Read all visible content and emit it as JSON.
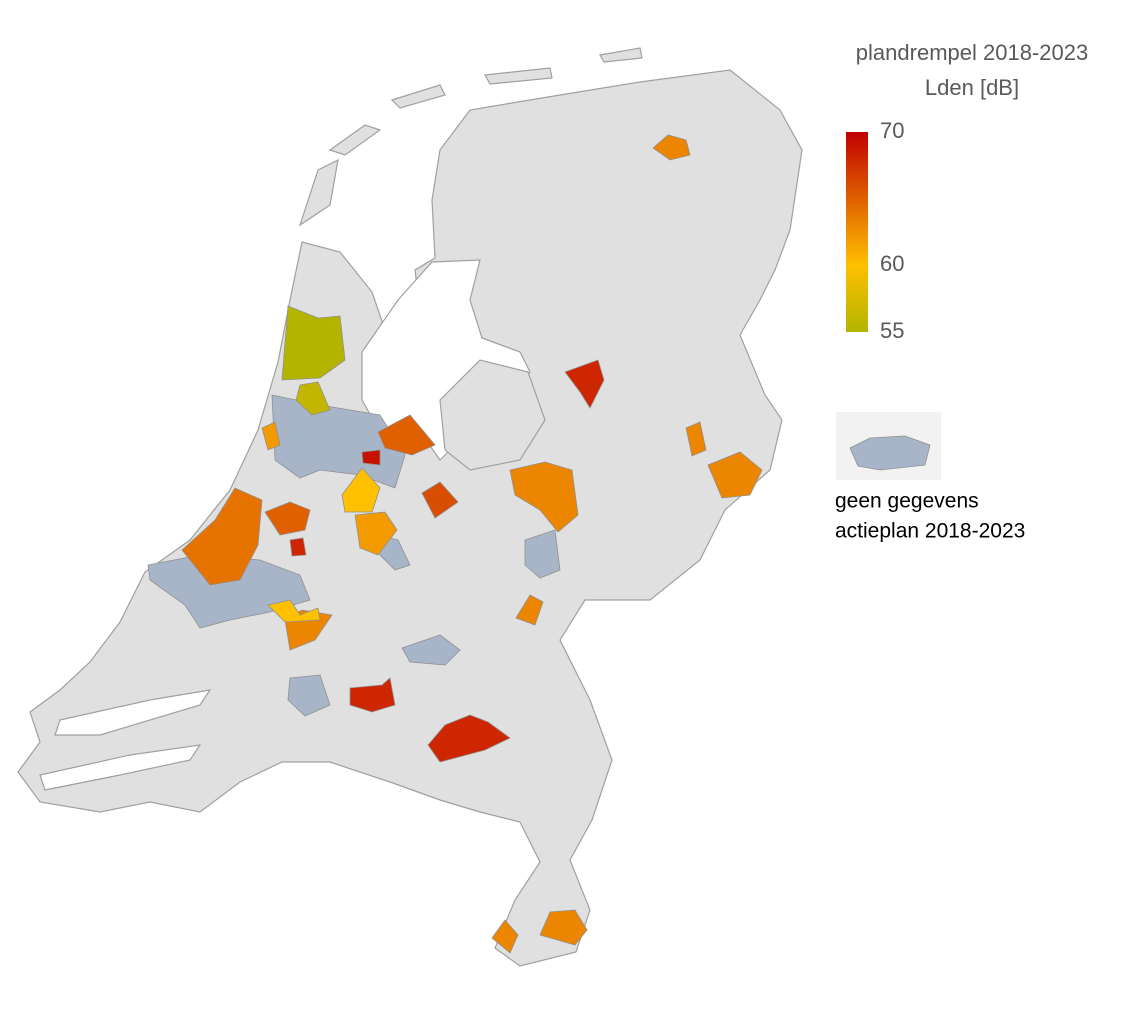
{
  "legend": {
    "title": "plandrempel 2018-2023",
    "subtitle": "Lden [dB]",
    "range": [
      55,
      70
    ],
    "ticks": [
      70,
      60,
      55
    ],
    "colorscale": [
      {
        "value": 55,
        "color": "#b3b400"
      },
      {
        "value": 60,
        "color": "#ffc000"
      },
      {
        "value": 70,
        "color": "#c00000"
      }
    ],
    "no_data": {
      "label_lines": [
        "geen gegevens",
        "actieplan 2018-2023"
      ],
      "color": "#a8b5c8"
    }
  },
  "region_values": [
    55,
    56,
    63,
    68,
    65,
    63,
    63,
    63,
    66,
    60,
    62,
    62,
    64,
    63,
    60,
    68,
    68,
    63,
    63,
    63,
    65,
    69,
    68
  ]
}
